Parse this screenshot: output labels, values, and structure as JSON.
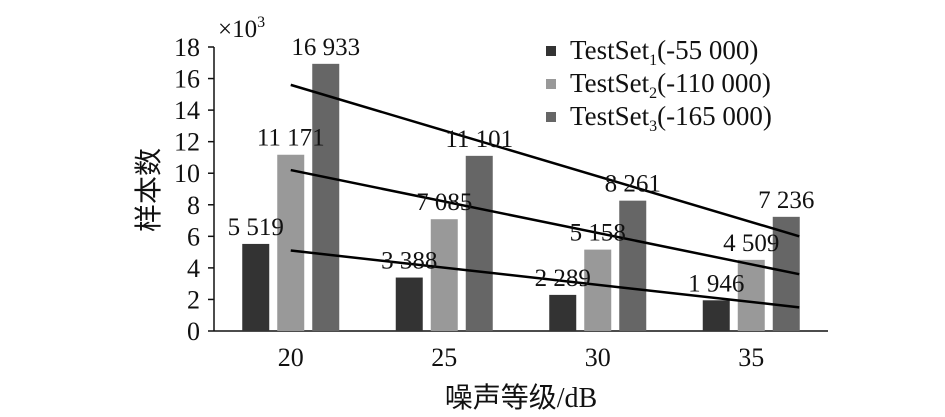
{
  "chart_data": {
    "type": "bar",
    "xlabel": "噪声等级/dB",
    "ylabel": "样本数",
    "y_multiplier_label": "×10",
    "y_multiplier_exponent": "3",
    "ylim": [
      0,
      18
    ],
    "yticks": [
      0,
      2,
      4,
      6,
      8,
      10,
      12,
      14,
      16,
      18
    ],
    "categories": [
      "20",
      "25",
      "30",
      "35"
    ],
    "series": [
      {
        "name_base": "TestSet",
        "name_sub": "1",
        "name_suffix": "(-55 000)",
        "color": "#333333",
        "values": [
          5.519,
          3.388,
          2.289,
          1.946
        ],
        "labels": [
          "5 519",
          "3 388",
          "2 289",
          "1 946"
        ]
      },
      {
        "name_base": "TestSet",
        "name_sub": "2",
        "name_suffix": "(-110 000)",
        "color": "#999999",
        "values": [
          11.171,
          7.085,
          5.158,
          4.509
        ],
        "labels": [
          "11 171",
          "7 085",
          "5 158",
          "4 509"
        ]
      },
      {
        "name_base": "TestSet",
        "name_sub": "3",
        "name_suffix": "(-165 000)",
        "color": "#666666",
        "values": [
          16.933,
          11.101,
          8.261,
          7.236
        ],
        "labels": [
          "16 933",
          "11 101",
          "8 261",
          "7 236"
        ]
      }
    ],
    "trendlines": [
      {
        "series": 0,
        "start": [
          20,
          5.1
        ],
        "end": [
          35,
          1.5
        ]
      },
      {
        "series": 1,
        "start": [
          20,
          10.2
        ],
        "end": [
          35,
          3.6
        ]
      },
      {
        "series": 2,
        "start": [
          20,
          15.6
        ],
        "end": [
          35,
          6.0
        ]
      }
    ],
    "grid": false,
    "legend_position": "top-right"
  }
}
